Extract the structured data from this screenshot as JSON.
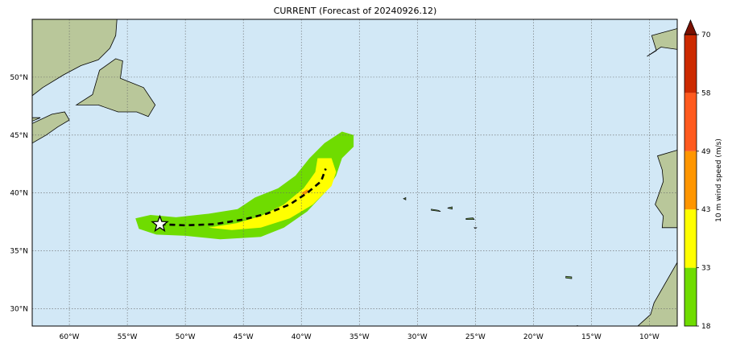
{
  "title": "CURRENT (Forecast of 20240926.12)",
  "colors": {
    "ocean": "#d2e8f6",
    "land": "#b9c79a",
    "land_dark": "#6f9d56",
    "grid": "#666666",
    "band_18": "#6fdc00",
    "band_33": "#ffff00",
    "band_43": "#ff9600",
    "band_49": "#ff5a1e",
    "band_58": "#cc2a00",
    "band_70": "#7a1000",
    "track": "#000000"
  },
  "map": {
    "lon_range": [
      -63.2,
      -7.6
    ],
    "lat_range": [
      28.5,
      55.0
    ],
    "lon_ticks": [
      {
        "v": -60,
        "label": "60°W"
      },
      {
        "v": -55,
        "label": "55°W"
      },
      {
        "v": -50,
        "label": "50°W"
      },
      {
        "v": -45,
        "label": "45°W"
      },
      {
        "v": -40,
        "label": "40°W"
      },
      {
        "v": -35,
        "label": "35°W"
      },
      {
        "v": -30,
        "label": "30°W"
      },
      {
        "v": -25,
        "label": "25°W"
      },
      {
        "v": -20,
        "label": "20°W"
      },
      {
        "v": -15,
        "label": "15°W"
      },
      {
        "v": -10,
        "label": "10°W"
      }
    ],
    "lat_ticks": [
      {
        "v": 30,
        "label": "30°N"
      },
      {
        "v": 35,
        "label": "35°N"
      },
      {
        "v": 40,
        "label": "40°N"
      },
      {
        "v": 45,
        "label": "45°N"
      },
      {
        "v": 50,
        "label": "50°N"
      }
    ],
    "grid": true,
    "track": [
      [
        -52.2,
        37.3
      ],
      [
        -50.0,
        37.2
      ],
      [
        -47.5,
        37.3
      ],
      [
        -45.0,
        37.7
      ],
      [
        -43.0,
        38.2
      ],
      [
        -41.0,
        39.0
      ],
      [
        -39.5,
        40.0
      ],
      [
        -38.3,
        41.0
      ],
      [
        -37.9,
        42.1
      ]
    ],
    "storm_start": [
      -52.2,
      37.3
    ],
    "wind_18": [
      [
        -54.3,
        37.8
      ],
      [
        -53.0,
        38.1
      ],
      [
        -50.8,
        37.9
      ],
      [
        -48.0,
        38.2
      ],
      [
        -45.5,
        38.6
      ],
      [
        -44.0,
        39.6
      ],
      [
        -42.0,
        40.4
      ],
      [
        -40.5,
        41.5
      ],
      [
        -39.3,
        43.0
      ],
      [
        -38.0,
        44.3
      ],
      [
        -36.5,
        45.3
      ],
      [
        -35.5,
        45.0
      ],
      [
        -35.5,
        44.0
      ],
      [
        -36.5,
        43.0
      ],
      [
        -37.0,
        41.5
      ],
      [
        -37.8,
        40.2
      ],
      [
        -39.5,
        38.4
      ],
      [
        -41.5,
        37.0
      ],
      [
        -43.5,
        36.2
      ],
      [
        -47.0,
        36.0
      ],
      [
        -50.0,
        36.3
      ],
      [
        -52.5,
        36.4
      ],
      [
        -54.0,
        36.9
      ]
    ],
    "wind_33": [
      [
        -48.0,
        37.0
      ],
      [
        -45.5,
        37.4
      ],
      [
        -43.5,
        38.0
      ],
      [
        -41.5,
        39.0
      ],
      [
        -39.8,
        40.4
      ],
      [
        -38.8,
        41.8
      ],
      [
        -38.6,
        43.0
      ],
      [
        -37.4,
        43.0
      ],
      [
        -37.0,
        41.8
      ],
      [
        -37.4,
        40.6
      ],
      [
        -39.0,
        39.0
      ],
      [
        -41.0,
        37.8
      ],
      [
        -43.5,
        37.0
      ],
      [
        -46.0,
        36.8
      ]
    ],
    "wind_small": [
      [
        -40.0,
        40.0
      ],
      [
        -39.5,
        40.3
      ],
      [
        -39.3,
        40.1
      ],
      [
        -39.8,
        39.8
      ]
    ],
    "islands": [
      [
        [
          -31.2,
          39.5
        ],
        [
          -31.0,
          39.6
        ],
        [
          -31.0,
          39.4
        ]
      ],
      [
        [
          -28.8,
          38.6
        ],
        [
          -28.2,
          38.5
        ],
        [
          -28.0,
          38.4
        ],
        [
          -28.8,
          38.5
        ]
      ],
      [
        [
          -27.4,
          38.7
        ],
        [
          -27.0,
          38.8
        ],
        [
          -27.0,
          38.6
        ]
      ],
      [
        [
          -25.8,
          37.8
        ],
        [
          -25.2,
          37.85
        ],
        [
          -25.1,
          37.7
        ],
        [
          -25.8,
          37.7
        ]
      ],
      [
        [
          -25.1,
          37.0
        ],
        [
          -24.9,
          37.0
        ],
        [
          -25.0,
          36.9
        ]
      ],
      [
        [
          -17.2,
          32.8
        ],
        [
          -16.7,
          32.75
        ],
        [
          -16.7,
          32.6
        ],
        [
          -17.2,
          32.65
        ]
      ],
      [
        [
          -16.5,
          28.4
        ],
        [
          -16.2,
          28.55
        ],
        [
          -16.1,
          28.3
        ]
      ],
      [
        [
          -15.7,
          28.0
        ],
        [
          -15.4,
          28.1
        ],
        [
          -15.4,
          27.9
        ]
      ]
    ],
    "land": [
      [
        [
          -63.2,
          48.4
        ],
        [
          -62.3,
          49.1
        ],
        [
          -60.5,
          50.2
        ],
        [
          -59.0,
          51.0
        ],
        [
          -57.5,
          51.5
        ],
        [
          -56.5,
          52.5
        ],
        [
          -56.0,
          53.6
        ],
        [
          -55.9,
          55.0
        ],
        [
          -63.2,
          55.0
        ]
      ],
      [
        [
          -59.4,
          47.6
        ],
        [
          -58.0,
          48.5
        ],
        [
          -57.4,
          50.6
        ],
        [
          -56.0,
          51.6
        ],
        [
          -55.4,
          51.4
        ],
        [
          -55.6,
          49.9
        ],
        [
          -53.6,
          49.1
        ],
        [
          -52.6,
          47.6
        ],
        [
          -53.2,
          46.6
        ],
        [
          -54.2,
          47.0
        ],
        [
          -55.8,
          47.0
        ],
        [
          -57.5,
          47.6
        ]
      ],
      [
        [
          -63.2,
          44.3
        ],
        [
          -62.0,
          45.0
        ],
        [
          -61.0,
          45.7
        ],
        [
          -60.0,
          46.3
        ],
        [
          -60.4,
          47.0
        ],
        [
          -61.5,
          46.8
        ],
        [
          -63.2,
          46.0
        ]
      ],
      [
        [
          -63.2,
          46.5
        ],
        [
          -62.5,
          46.5
        ],
        [
          -63.2,
          46.2
        ]
      ],
      [
        [
          -7.6,
          54.2
        ],
        [
          -9.8,
          53.6
        ],
        [
          -9.4,
          52.3
        ],
        [
          -10.2,
          51.8
        ],
        [
          -9.0,
          52.6
        ],
        [
          -7.6,
          52.4
        ]
      ],
      [
        [
          -7.6,
          43.7
        ],
        [
          -9.3,
          43.2
        ],
        [
          -8.9,
          42.0
        ],
        [
          -8.8,
          41.0
        ],
        [
          -9.5,
          39.0
        ],
        [
          -8.8,
          38.0
        ],
        [
          -8.9,
          37.0
        ],
        [
          -7.6,
          37.0
        ]
      ],
      [
        [
          -7.6,
          34.5
        ],
        [
          -7.6,
          34.0
        ],
        [
          -9.6,
          30.5
        ],
        [
          -9.9,
          29.5
        ],
        [
          -11.0,
          28.5
        ],
        [
          -7.6,
          28.5
        ]
      ]
    ]
  },
  "colorbar": {
    "label": "10 m wind speed (m/s)",
    "ticks": [
      {
        "v": 18,
        "label": "18"
      },
      {
        "v": 33,
        "label": "33"
      },
      {
        "v": 43,
        "label": "43"
      },
      {
        "v": 49,
        "label": "49"
      },
      {
        "v": 58,
        "label": "58"
      },
      {
        "v": 70,
        "label": "70"
      }
    ],
    "bands": [
      {
        "color": "#6fdc00"
      },
      {
        "color": "#ffff00"
      },
      {
        "color": "#ff9600"
      },
      {
        "color": "#ff5a1e"
      },
      {
        "color": "#cc2a00"
      }
    ],
    "extend_color": "#7a1000"
  }
}
